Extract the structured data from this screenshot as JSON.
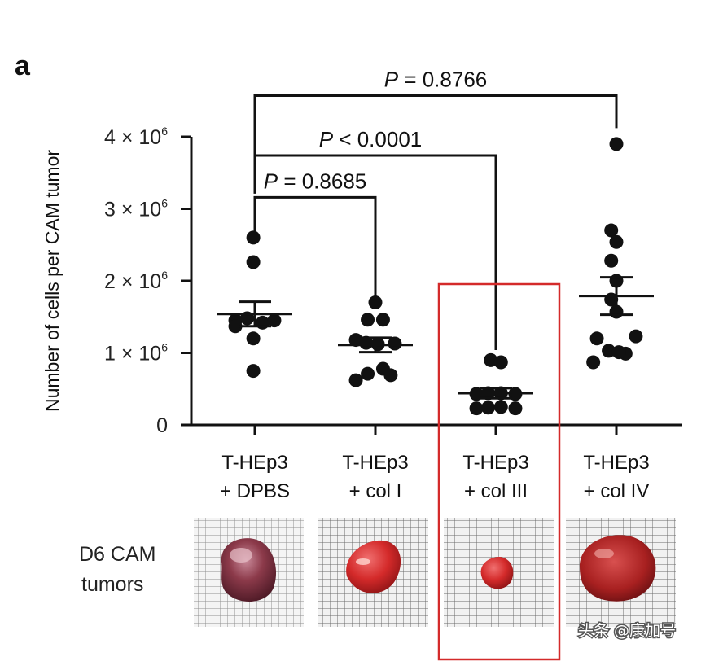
{
  "panel_label": "a",
  "row_label": [
    "D6 CAM",
    "tumors"
  ],
  "watermark": "头条 @康加号",
  "highlight_color": "#d42a2a",
  "chart_data": {
    "type": "scatter",
    "title": "",
    "xlabel": "",
    "ylabel": "Number of cells per CAM tumor",
    "ylim": [
      0,
      4200000
    ],
    "yticks": [
      {
        "value": 0,
        "label": "0",
        "exp": ""
      },
      {
        "value": 1000000,
        "label": "1 × 10",
        "exp": "6"
      },
      {
        "value": 2000000,
        "label": "2 × 10",
        "exp": "6"
      },
      {
        "value": 3000000,
        "label": "3 × 10",
        "exp": "6"
      },
      {
        "value": 4000000,
        "label": "4 × 10",
        "exp": "6"
      }
    ],
    "categories": [
      {
        "line1": "T-HEp3",
        "line2": "+ DPBS"
      },
      {
        "line1": "T-HEp3",
        "line2": "+ col I"
      },
      {
        "line1": "T-HEp3",
        "line2": "+ col III"
      },
      {
        "line1": "T-HEp3",
        "line2": "+ col IV"
      }
    ],
    "series": [
      {
        "name": "T-HEp3 + DPBS",
        "mean": 1540000,
        "sem": 170000,
        "points": [
          [
            -0.03,
            2600000
          ],
          [
            -0.03,
            2260000
          ],
          [
            -0.38,
            1450000
          ],
          [
            -0.15,
            1480000
          ],
          [
            0.15,
            1420000
          ],
          [
            0.38,
            1450000
          ],
          [
            -0.38,
            1370000
          ],
          [
            -0.03,
            1200000
          ],
          [
            -0.03,
            750000
          ]
        ]
      },
      {
        "name": "T-HEp3 + col I",
        "mean": 1110000,
        "sem": 100000,
        "points": [
          [
            0.0,
            1700000
          ],
          [
            -0.15,
            1460000
          ],
          [
            0.15,
            1460000
          ],
          [
            -0.38,
            1180000
          ],
          [
            -0.18,
            1140000
          ],
          [
            0.05,
            1120000
          ],
          [
            0.38,
            1130000
          ],
          [
            -0.38,
            620000
          ],
          [
            -0.15,
            710000
          ],
          [
            0.15,
            780000
          ],
          [
            0.3,
            690000
          ]
        ]
      },
      {
        "name": "T-HEp3 + col III",
        "mean": 440000,
        "sem": 70000,
        "points": [
          [
            -0.1,
            900000
          ],
          [
            0.1,
            870000
          ],
          [
            -0.38,
            430000
          ],
          [
            -0.15,
            440000
          ],
          [
            0.1,
            440000
          ],
          [
            0.38,
            430000
          ],
          [
            -0.38,
            230000
          ],
          [
            -0.15,
            240000
          ],
          [
            0.1,
            250000
          ],
          [
            0.38,
            230000
          ]
        ]
      },
      {
        "name": "T-HEp3 + col IV",
        "mean": 1790000,
        "sem": 260000,
        "points": [
          [
            0.0,
            3900000
          ],
          [
            -0.1,
            2700000
          ],
          [
            0.0,
            2540000
          ],
          [
            -0.1,
            2280000
          ],
          [
            0.0,
            2000000
          ],
          [
            -0.1,
            1740000
          ],
          [
            0.0,
            1570000
          ],
          [
            0.38,
            1230000
          ],
          [
            -0.38,
            1200000
          ],
          [
            -0.15,
            1030000
          ],
          [
            0.18,
            990000
          ],
          [
            -0.45,
            870000
          ],
          [
            0.05,
            1010000
          ]
        ]
      }
    ],
    "comparisons": [
      {
        "from": 0,
        "to": 1,
        "label_prefix": "P",
        "label_rest": " = 0.8685",
        "y": 3160000
      },
      {
        "from": 0,
        "to": 2,
        "label_prefix": "P",
        "label_rest": " < 0.0001",
        "y": 3740000
      },
      {
        "from": 0,
        "to": 3,
        "label_prefix": "P",
        "label_rest": " = 0.8766",
        "y": 4570000
      }
    ],
    "highlight_group": 2
  }
}
